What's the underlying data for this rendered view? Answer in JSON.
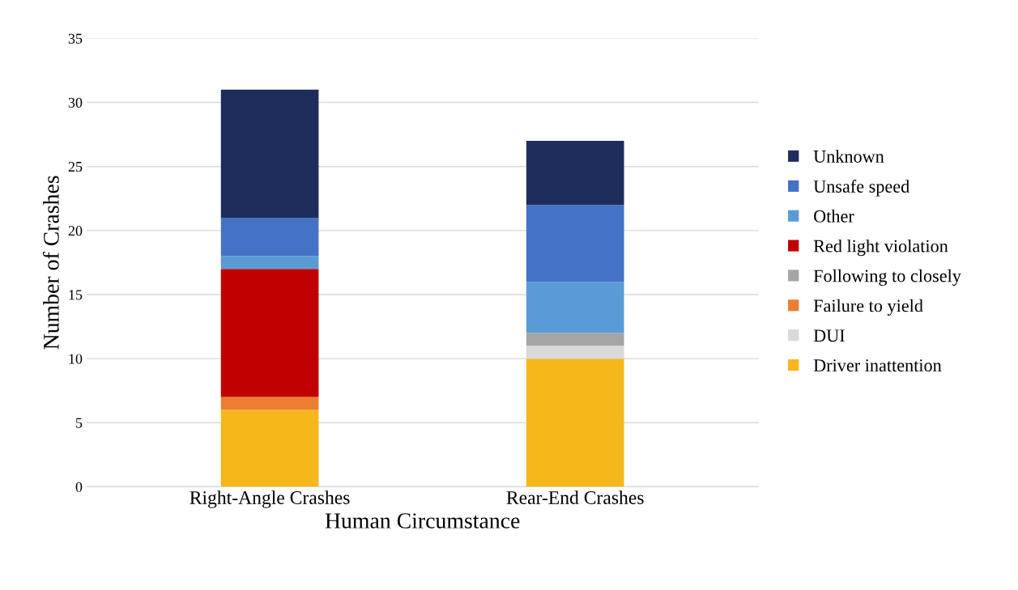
{
  "chart_data": {
    "type": "bar",
    "stacked": true,
    "xlabel": "Human Circumstance",
    "ylabel": "Number of Crashes",
    "categories": [
      "Right-Angle Crashes",
      "Rear-End Crashes"
    ],
    "series": [
      {
        "name": "Driver inattention",
        "color": "#f5b71a",
        "values": [
          6,
          10
        ]
      },
      {
        "name": "DUI",
        "color": "#d9d9d9",
        "values": [
          0,
          1
        ]
      },
      {
        "name": "Failure to yield",
        "color": "#ed7d31",
        "values": [
          1,
          0
        ]
      },
      {
        "name": "Following to closely",
        "color": "#a5a5a5",
        "values": [
          0,
          1
        ]
      },
      {
        "name": "Red light violation",
        "color": "#c00000",
        "values": [
          10,
          0
        ]
      },
      {
        "name": "Other",
        "color": "#5b9bd5",
        "values": [
          1,
          4
        ]
      },
      {
        "name": "Unsafe speed",
        "color": "#4472c4",
        "values": [
          3,
          6
        ]
      },
      {
        "name": "Unknown",
        "color": "#1f2d5c",
        "values": [
          10,
          5
        ]
      }
    ],
    "ylim": [
      0,
      35
    ],
    "yticks": [
      0,
      5,
      10,
      15,
      20,
      25,
      30,
      35
    ],
    "grid": "y",
    "legend": "right"
  }
}
